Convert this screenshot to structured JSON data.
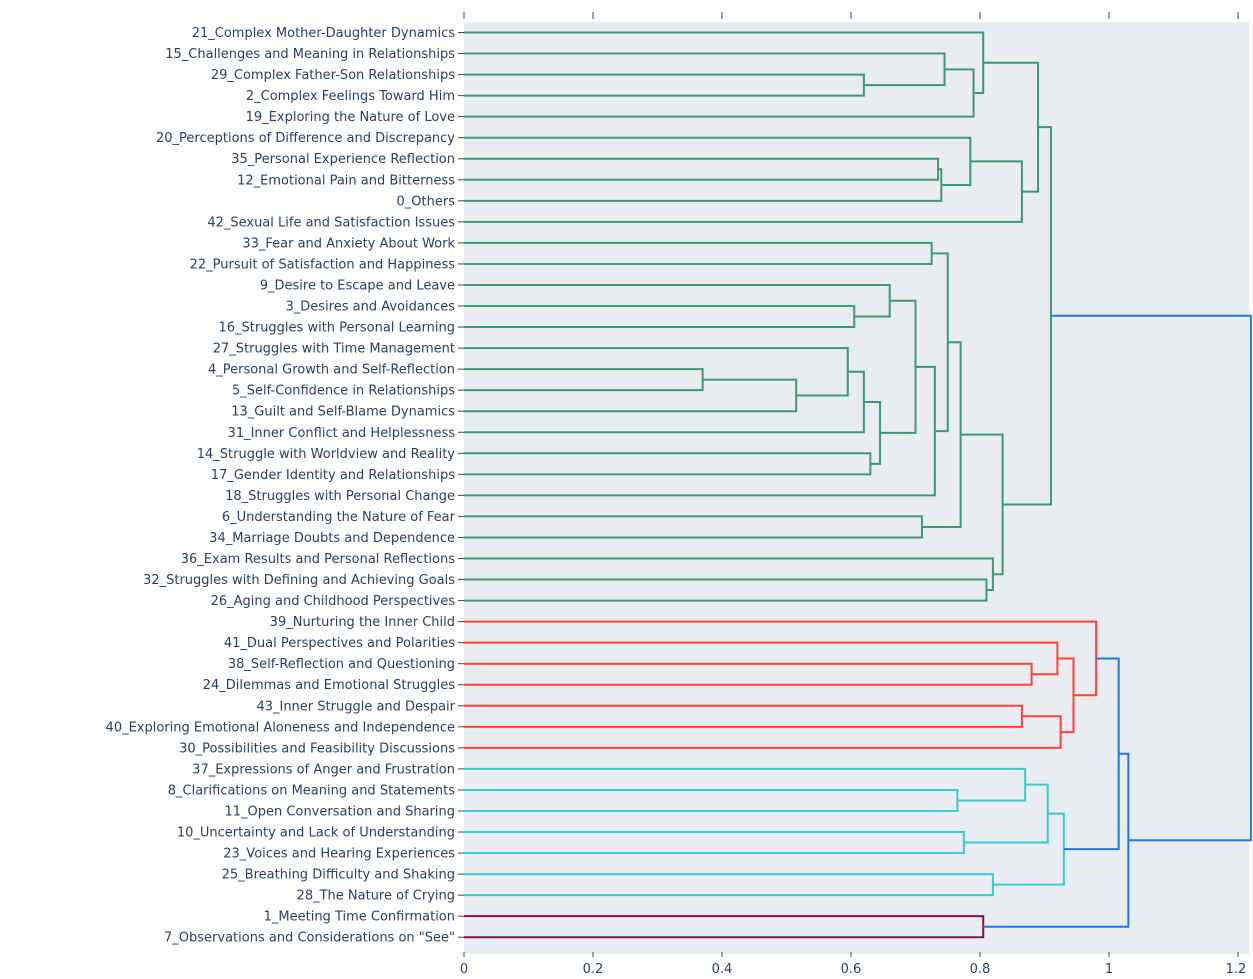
{
  "chart_data": {
    "type": "dendrogram",
    "orientation": "horizontal",
    "x_ticks": [
      0,
      0.2,
      0.4,
      0.6,
      0.8,
      1,
      1.2
    ],
    "x_tick_labels": [
      "0",
      "0.2",
      "0.4",
      "0.6",
      "0.8",
      "1",
      "1.2"
    ],
    "xlim": [
      0,
      1.22
    ],
    "grid": false,
    "colors": {
      "green": "#3d9970",
      "red": "#ff4136",
      "cyan": "#39cccc",
      "maroon": "#85144b",
      "blue": "#1f77e4",
      "plot_bg": "#e9edf2",
      "text": "#2a3f5f"
    },
    "leaves": [
      "21_Complex Mother-Daughter Dynamics",
      "15_Challenges and Meaning in Relationships",
      "29_Complex Father-Son Relationships",
      "2_Complex Feelings Toward Him",
      "19_Exploring the Nature of Love",
      "20_Perceptions of Difference and Discrepancy",
      "35_Personal Experience Reflection",
      "12_Emotional Pain and Bitterness",
      "0_Others",
      "42_Sexual Life and Satisfaction Issues",
      "33_Fear and Anxiety About Work",
      "22_Pursuit of Satisfaction and Happiness",
      "9_Desire to Escape and Leave",
      "3_Desires and Avoidances",
      "16_Struggles with Personal Learning",
      "27_Struggles with Time Management",
      "4_Personal Growth and Self-Reflection",
      "5_Self-Confidence in Relationships",
      "13_Guilt and Self-Blame Dynamics",
      "31_Inner Conflict and Helplessness",
      "14_Struggle with Worldview and Reality",
      "17_Gender Identity and Relationships",
      "18_Struggles with Personal Change",
      "6_Understanding the Nature of Fear",
      "34_Marriage Doubts and Dependence",
      "36_Exam Results and Personal Reflections",
      "32_Struggles with Defining and Achieving Goals",
      "26_Aging and Childhood Perspectives",
      "39_Nurturing the Inner Child",
      "41_Dual Perspectives and Polarities",
      "38_Self-Reflection and Questioning",
      "24_Dilemmas and Emotional Struggles",
      "43_Inner Struggle and Despair",
      "40_Exploring Emotional Aloneness and Independence",
      "30_Possibilities and Feasibility Discussions",
      "37_Expressions of Anger and Frustration",
      "8_Clarifications on Meaning and Statements",
      "11_Open Conversation and Sharing",
      "10_Uncertainty and Lack of Understanding",
      "23_Voices and Hearing Experiences",
      "25_Breathing Difficulty and Shaking",
      "28_The Nature of Crying",
      "1_Meeting Time Confirmation",
      "7_Observations and Considerations on \"See\""
    ],
    "merges": [
      {
        "id": "m1",
        "a": "L2",
        "b": "L3",
        "h": 0.62,
        "color": "green"
      },
      {
        "id": "m2",
        "a": "L1",
        "b": "m1",
        "h": 0.745,
        "color": "green"
      },
      {
        "id": "m3",
        "a": "m2",
        "b": "L4",
        "h": 0.79,
        "color": "green"
      },
      {
        "id": "m4",
        "a": "L0",
        "b": "m3",
        "h": 0.805,
        "color": "green"
      },
      {
        "id": "m5",
        "a": "L6",
        "b": "L7",
        "h": 0.735,
        "color": "green"
      },
      {
        "id": "m6",
        "a": "m5",
        "b": "L8",
        "h": 0.74,
        "color": "green"
      },
      {
        "id": "m7",
        "a": "L5",
        "b": "m6",
        "h": 0.785,
        "color": "green"
      },
      {
        "id": "m8",
        "a": "m7",
        "b": "L9",
        "h": 0.865,
        "color": "green"
      },
      {
        "id": "m9",
        "a": "m4",
        "b": "m8",
        "h": 0.89,
        "color": "green"
      },
      {
        "id": "m10",
        "a": "L10",
        "b": "L11",
        "h": 0.725,
        "color": "green"
      },
      {
        "id": "m11",
        "a": "L13",
        "b": "L14",
        "h": 0.605,
        "color": "green"
      },
      {
        "id": "m12",
        "a": "L12",
        "b": "m11",
        "h": 0.66,
        "color": "green"
      },
      {
        "id": "m13",
        "a": "L16",
        "b": "L17",
        "h": 0.37,
        "color": "green"
      },
      {
        "id": "m14",
        "a": "m13",
        "b": "L18",
        "h": 0.515,
        "color": "green"
      },
      {
        "id": "m15",
        "a": "L15",
        "b": "m14",
        "h": 0.595,
        "color": "green"
      },
      {
        "id": "m16",
        "a": "m15",
        "b": "L19",
        "h": 0.62,
        "color": "green"
      },
      {
        "id": "m17",
        "a": "L20",
        "b": "L21",
        "h": 0.63,
        "color": "green"
      },
      {
        "id": "m18",
        "a": "m16",
        "b": "m17",
        "h": 0.645,
        "color": "green"
      },
      {
        "id": "m19",
        "a": "m12",
        "b": "m18",
        "h": 0.7,
        "color": "green"
      },
      {
        "id": "m20",
        "a": "m19",
        "b": "L22",
        "h": 0.73,
        "color": "green"
      },
      {
        "id": "m21",
        "a": "m10",
        "b": "m20",
        "h": 0.75,
        "color": "green"
      },
      {
        "id": "m22",
        "a": "L23",
        "b": "L24",
        "h": 0.71,
        "color": "green"
      },
      {
        "id": "m23",
        "a": "m21",
        "b": "m22",
        "h": 0.77,
        "color": "green"
      },
      {
        "id": "m24",
        "a": "L26",
        "b": "L27",
        "h": 0.81,
        "color": "green"
      },
      {
        "id": "m25",
        "a": "L25",
        "b": "m24",
        "h": 0.82,
        "color": "green"
      },
      {
        "id": "m26",
        "a": "m23",
        "b": "m25",
        "h": 0.835,
        "color": "green"
      },
      {
        "id": "m27",
        "a": "m9",
        "b": "m26",
        "h": 0.91,
        "color": "green"
      },
      {
        "id": "m28",
        "a": "L30",
        "b": "L31",
        "h": 0.88,
        "color": "red"
      },
      {
        "id": "m29",
        "a": "L29",
        "b": "m28",
        "h": 0.92,
        "color": "red"
      },
      {
        "id": "m30",
        "a": "L32",
        "b": "L33",
        "h": 0.865,
        "color": "red"
      },
      {
        "id": "m31",
        "a": "m30",
        "b": "L34",
        "h": 0.925,
        "color": "red"
      },
      {
        "id": "m32",
        "a": "m29",
        "b": "m31",
        "h": 0.945,
        "color": "red"
      },
      {
        "id": "m33",
        "a": "L28",
        "b": "m32",
        "h": 0.98,
        "color": "red"
      },
      {
        "id": "m34",
        "a": "L36",
        "b": "L37",
        "h": 0.765,
        "color": "cyan"
      },
      {
        "id": "m35",
        "a": "L35",
        "b": "m34",
        "h": 0.87,
        "color": "cyan"
      },
      {
        "id": "m36",
        "a": "L38",
        "b": "L39",
        "h": 0.775,
        "color": "cyan"
      },
      {
        "id": "m37",
        "a": "m35",
        "b": "m36",
        "h": 0.905,
        "color": "cyan"
      },
      {
        "id": "m38",
        "a": "L40",
        "b": "L41",
        "h": 0.82,
        "color": "cyan"
      },
      {
        "id": "m39",
        "a": "m37",
        "b": "m38",
        "h": 0.93,
        "color": "cyan"
      },
      {
        "id": "m40",
        "a": "m33",
        "b": "m39",
        "h": 1.015,
        "color": "blue"
      },
      {
        "id": "m41",
        "a": "L42",
        "b": "L43",
        "h": 0.805,
        "color": "maroon"
      },
      {
        "id": "m42",
        "a": "m40",
        "b": "m41",
        "h": 1.03,
        "color": "blue"
      },
      {
        "id": "m43",
        "a": "m27",
        "b": "m42",
        "h": 1.22,
        "color": "blue"
      }
    ]
  }
}
